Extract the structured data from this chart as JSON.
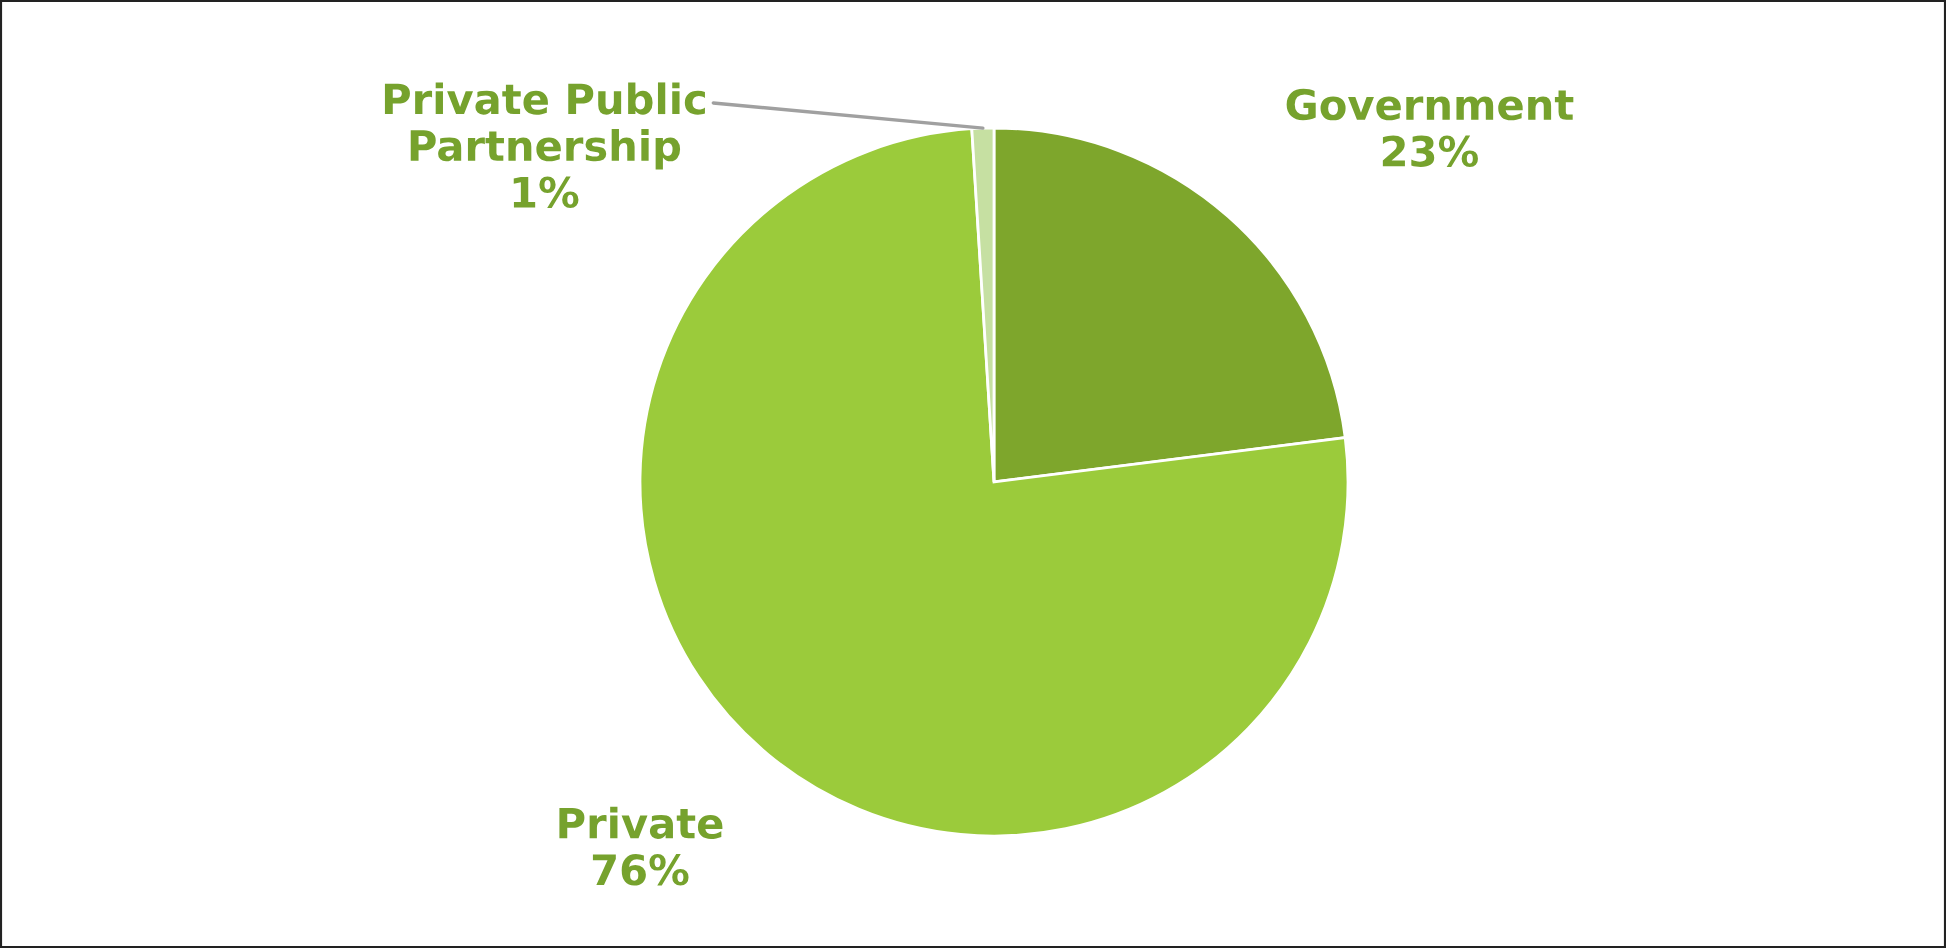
{
  "chart_data": {
    "type": "pie",
    "categories": [
      "Government",
      "Private",
      "Private Public Partnership"
    ],
    "values": [
      23,
      76,
      1
    ],
    "colors": [
      "#7ea62c",
      "#9bcb3b",
      "#c6e0a2"
    ],
    "value_labels": [
      "23%",
      "76%",
      "1%"
    ]
  }
}
